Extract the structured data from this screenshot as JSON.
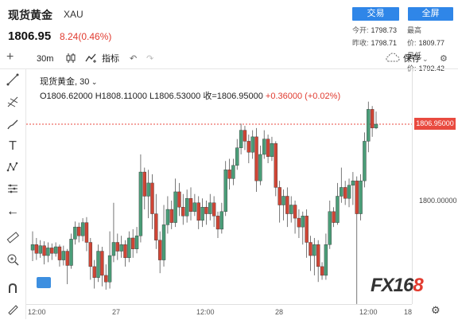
{
  "header": {
    "title": "现货黄金",
    "symbol": "XAU",
    "price": "1806.95",
    "change": "8.24(0.46%)",
    "change_color": "#e03a2f",
    "trade_btn": "交易",
    "fullscreen_btn": "全屏",
    "stats": {
      "open_label": "今开:",
      "open": "1798.73",
      "high_label": "最高价:",
      "high": "1809.77",
      "prev_label": "昨收:",
      "prev": "1798.71",
      "low_label": "最低价:",
      "low": "1792.42"
    }
  },
  "toolbar": {
    "interval": "30m",
    "indicators": "指标",
    "save": "保存"
  },
  "legend": {
    "name": "现货黄金",
    "interval": "30",
    "ohlc": "O1806.62000  H1808.11000  L1806.53000  收=1806.95000",
    "change": "+0.36000 (+0.02%)"
  },
  "axis": {
    "current_price": "1806.95000",
    "level_label": "1800.00000",
    "x_labels": [
      "12:00",
      "27",
      "12:00",
      "28",
      "12:00",
      "18"
    ]
  },
  "watermark": {
    "left": "FX16",
    "right": "8"
  },
  "chart_data": {
    "type": "candlestick",
    "current_price": 1806.95,
    "y_tick": 1800.0,
    "x_ticks": [
      "12:00",
      "27",
      "12:00",
      "28",
      "12:00",
      "18"
    ],
    "candles": [
      [
        1795.5,
        1796.0,
        1794.5,
        1797.2
      ],
      [
        1796.0,
        1795.2,
        1794.6,
        1796.6
      ],
      [
        1795.2,
        1795.9,
        1794.8,
        1796.4
      ],
      [
        1795.9,
        1795.0,
        1794.2,
        1796.3
      ],
      [
        1795.0,
        1795.7,
        1794.4,
        1796.2
      ],
      [
        1795.7,
        1795.2,
        1794.6,
        1796.1
      ],
      [
        1795.2,
        1795.8,
        1794.9,
        1796.2
      ],
      [
        1795.8,
        1794.6,
        1794.0,
        1796.0
      ],
      [
        1794.6,
        1795.4,
        1794.1,
        1795.9
      ],
      [
        1795.4,
        1794.1,
        1792.4,
        1795.6
      ],
      [
        1794.1,
        1796.5,
        1793.8,
        1797.0
      ],
      [
        1796.5,
        1797.6,
        1796.0,
        1798.1
      ],
      [
        1797.6,
        1796.8,
        1796.2,
        1798.0
      ],
      [
        1796.8,
        1798.0,
        1796.3,
        1798.4
      ],
      [
        1798.0,
        1796.2,
        1795.4,
        1798.5
      ],
      [
        1796.2,
        1794.0,
        1792.8,
        1796.6
      ],
      [
        1794.0,
        1793.0,
        1792.0,
        1794.6
      ],
      [
        1793.0,
        1795.4,
        1792.6,
        1796.0
      ],
      [
        1795.4,
        1793.2,
        1792.2,
        1795.8
      ],
      [
        1793.2,
        1792.6,
        1791.9,
        1794.2
      ],
      [
        1792.6,
        1795.0,
        1792.0,
        1797.2
      ],
      [
        1795.0,
        1796.2,
        1794.4,
        1799.8
      ],
      [
        1796.2,
        1795.4,
        1794.6,
        1797.0
      ],
      [
        1795.4,
        1796.0,
        1794.8,
        1796.8
      ],
      [
        1796.0,
        1794.8,
        1794.0,
        1796.4
      ],
      [
        1794.8,
        1796.6,
        1794.4,
        1797.2
      ],
      [
        1796.6,
        1795.6,
        1794.8,
        1797.4
      ],
      [
        1795.6,
        1796.8,
        1795.2,
        1797.6
      ],
      [
        1796.8,
        1802.6,
        1796.2,
        1804.2
      ],
      [
        1802.6,
        1800.4,
        1799.2,
        1803.0
      ],
      [
        1800.4,
        1801.6,
        1798.4,
        1802.8
      ],
      [
        1801.6,
        1798.8,
        1797.4,
        1802.4
      ],
      [
        1798.8,
        1796.4,
        1795.6,
        1800.6
      ],
      [
        1796.4,
        1794.6,
        1793.4,
        1797.2
      ],
      [
        1794.6,
        1797.8,
        1794.0,
        1799.6
      ],
      [
        1797.8,
        1799.2,
        1797.0,
        1800.4
      ],
      [
        1799.2,
        1798.0,
        1797.4,
        1800.0
      ],
      [
        1798.0,
        1800.8,
        1797.6,
        1802.0
      ],
      [
        1800.8,
        1799.4,
        1798.6,
        1801.6
      ],
      [
        1799.4,
        1798.6,
        1797.8,
        1800.6
      ],
      [
        1798.6,
        1800.2,
        1798.0,
        1801.0
      ],
      [
        1800.2,
        1799.0,
        1798.2,
        1801.2
      ],
      [
        1799.0,
        1799.8,
        1798.6,
        1800.6
      ],
      [
        1799.8,
        1798.2,
        1797.4,
        1800.4
      ],
      [
        1798.2,
        1799.4,
        1797.6,
        1800.2
      ],
      [
        1799.4,
        1798.8,
        1797.8,
        1800.0
      ],
      [
        1798.8,
        1799.8,
        1798.2,
        1800.6
      ],
      [
        1799.8,
        1798.6,
        1797.6,
        1800.4
      ],
      [
        1798.6,
        1797.4,
        1796.6,
        1799.0
      ],
      [
        1797.4,
        1799.0,
        1797.0,
        1799.8
      ],
      [
        1799.0,
        1802.8,
        1798.6,
        1803.6
      ],
      [
        1802.8,
        1802.0,
        1801.0,
        1803.8
      ],
      [
        1802.0,
        1803.2,
        1801.4,
        1803.8
      ],
      [
        1803.2,
        1804.8,
        1802.8,
        1805.6
      ],
      [
        1804.8,
        1806.4,
        1804.2,
        1807.0
      ],
      [
        1806.4,
        1805.4,
        1804.6,
        1806.8
      ],
      [
        1805.4,
        1804.4,
        1803.4,
        1806.0
      ],
      [
        1804.4,
        1805.8,
        1803.8,
        1806.4
      ],
      [
        1805.8,
        1801.8,
        1800.8,
        1806.6
      ],
      [
        1801.8,
        1804.2,
        1801.4,
        1805.0
      ],
      [
        1804.2,
        1805.6,
        1803.8,
        1806.4
      ],
      [
        1805.6,
        1804.0,
        1803.4,
        1806.0
      ],
      [
        1804.0,
        1805.2,
        1803.6,
        1805.8
      ],
      [
        1805.2,
        1801.2,
        1800.4,
        1805.4
      ],
      [
        1801.2,
        1799.6,
        1798.0,
        1801.8
      ],
      [
        1799.6,
        1800.4,
        1798.2,
        1801.0
      ],
      [
        1800.4,
        1798.8,
        1797.6,
        1801.2
      ],
      [
        1798.8,
        1799.6,
        1798.0,
        1800.4
      ],
      [
        1799.6,
        1798.4,
        1797.0,
        1800.0
      ],
      [
        1798.4,
        1797.6,
        1796.6,
        1799.2
      ],
      [
        1797.6,
        1798.6,
        1796.0,
        1799.0
      ],
      [
        1798.6,
        1796.2,
        1794.8,
        1799.2
      ],
      [
        1796.2,
        1795.0,
        1793.6,
        1796.8
      ],
      [
        1795.0,
        1796.0,
        1793.2,
        1796.6
      ],
      [
        1796.0,
        1794.0,
        1792.6,
        1796.4
      ],
      [
        1794.0,
        1793.2,
        1792.8,
        1794.4
      ],
      [
        1793.2,
        1796.0,
        1792.8,
        1797.0
      ],
      [
        1796.0,
        1799.0,
        1795.6,
        1800.0
      ],
      [
        1799.0,
        1798.0,
        1797.6,
        1799.4
      ],
      [
        1798.0,
        1800.4,
        1797.8,
        1801.6
      ],
      [
        1800.4,
        1801.2,
        1799.8,
        1803.0
      ],
      [
        1801.2,
        1800.2,
        1799.6,
        1801.8
      ],
      [
        1800.2,
        1801.4,
        1799.4,
        1802.0
      ],
      [
        1801.4,
        1801.8,
        1799.6,
        1802.6
      ],
      [
        1801.8,
        1798.8,
        1790.6,
        1802.2
      ],
      [
        1798.8,
        1801.8,
        1798.2,
        1802.4
      ],
      [
        1801.8,
        1805.4,
        1801.2,
        1806.2
      ],
      [
        1805.4,
        1808.3,
        1804.4,
        1809.0
      ],
      [
        1808.3,
        1806.6,
        1805.8,
        1808.6
      ],
      [
        1806.6,
        1806.95,
        1806.5,
        1808.1
      ]
    ]
  }
}
